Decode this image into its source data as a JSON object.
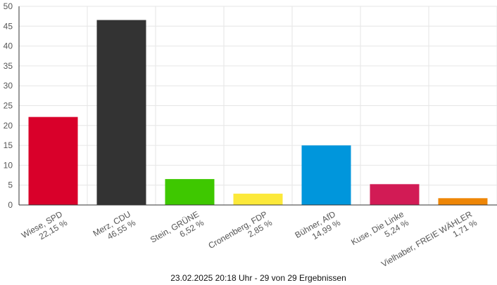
{
  "chart_data": {
    "type": "bar",
    "categories": [
      [
        "Wiese, SPD",
        "22,15 %"
      ],
      [
        "Merz, CDU",
        "46,55 %"
      ],
      [
        "Stein, GRÜNE",
        "6,52 %"
      ],
      [
        "Cronenberg, FDP",
        "2,85 %"
      ],
      [
        "Bühner, AfD",
        "14,99 %"
      ],
      [
        "Kuse, Die Linke",
        "5,24 %"
      ],
      [
        "Vielhaber, FREIE WÄHLER",
        "1,71 %"
      ]
    ],
    "values": [
      22.15,
      46.55,
      6.52,
      2.85,
      14.99,
      5.24,
      1.71
    ],
    "colors": [
      "#d9002a",
      "#333333",
      "#3ec800",
      "#fce93a",
      "#0096dc",
      "#d21b55",
      "#ee8606"
    ],
    "yticks": [
      0,
      5,
      10,
      15,
      20,
      25,
      30,
      35,
      40,
      45,
      50
    ],
    "ylim": [
      0,
      50
    ],
    "grid": true,
    "xlabel": "",
    "ylabel": ""
  },
  "footer": "23.02.2025 20:18 Uhr - 29 von 29 Ergebnissen"
}
